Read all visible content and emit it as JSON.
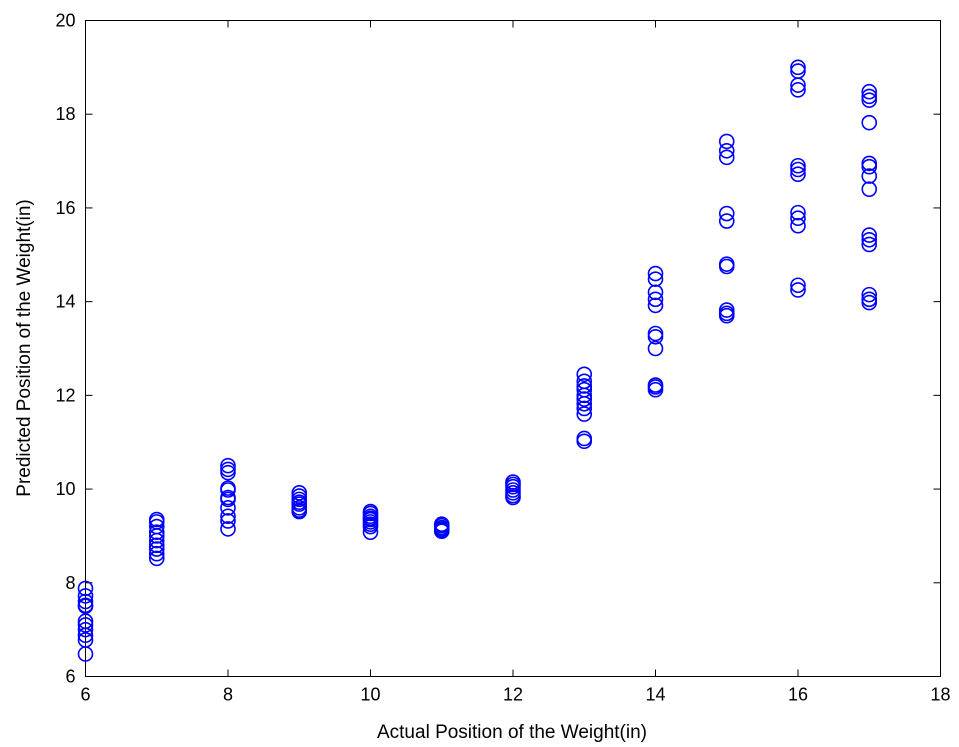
{
  "chart_data": {
    "type": "scatter",
    "title": "",
    "xlabel": "Actual Position of the Weight(in)",
    "ylabel": "Predicted Position of the Weight(in)",
    "xlim": [
      6,
      18
    ],
    "ylim": [
      6,
      20
    ],
    "xticks": [
      6,
      8,
      10,
      12,
      14,
      16,
      18
    ],
    "yticks": [
      6,
      8,
      10,
      12,
      14,
      16,
      18,
      20
    ],
    "marker": "open-circle",
    "color": "#0000ff",
    "grid": false,
    "series": [
      {
        "points": [
          [
            6,
            7.88
          ],
          [
            6,
            7.72
          ],
          [
            6,
            7.6
          ],
          [
            6,
            7.52
          ],
          [
            6,
            7.5
          ],
          [
            6,
            7.18
          ],
          [
            6,
            7.1
          ],
          [
            6,
            7.0
          ],
          [
            6,
            6.88
          ],
          [
            6,
            6.78
          ],
          [
            6,
            6.48
          ],
          [
            7,
            9.35
          ],
          [
            7,
            9.3
          ],
          [
            7,
            9.2
          ],
          [
            7,
            9.08
          ],
          [
            7,
            9.0
          ],
          [
            7,
            8.9
          ],
          [
            7,
            8.8
          ],
          [
            7,
            8.72
          ],
          [
            7,
            8.62
          ],
          [
            7,
            8.52
          ],
          [
            8,
            10.5
          ],
          [
            8,
            10.42
          ],
          [
            8,
            10.35
          ],
          [
            8,
            10.02
          ],
          [
            8,
            9.98
          ],
          [
            8,
            9.82
          ],
          [
            8,
            9.78
          ],
          [
            8,
            9.6
          ],
          [
            8,
            9.42
          ],
          [
            8,
            9.32
          ],
          [
            8,
            9.15
          ],
          [
            9,
            9.92
          ],
          [
            9,
            9.85
          ],
          [
            9,
            9.78
          ],
          [
            9,
            9.72
          ],
          [
            9,
            9.68
          ],
          [
            9,
            9.6
          ],
          [
            9,
            9.55
          ],
          [
            9,
            9.52
          ],
          [
            10,
            9.52
          ],
          [
            10,
            9.48
          ],
          [
            10,
            9.42
          ],
          [
            10,
            9.38
          ],
          [
            10,
            9.35
          ],
          [
            10,
            9.3
          ],
          [
            10,
            9.25
          ],
          [
            10,
            9.2
          ],
          [
            10,
            9.08
          ],
          [
            11,
            9.25
          ],
          [
            11,
            9.22
          ],
          [
            11,
            9.18
          ],
          [
            11,
            9.15
          ],
          [
            11,
            9.12
          ],
          [
            11,
            9.1
          ],
          [
            12,
            10.15
          ],
          [
            12,
            10.1
          ],
          [
            12,
            10.05
          ],
          [
            12,
            9.98
          ],
          [
            12,
            9.92
          ],
          [
            12,
            9.86
          ],
          [
            12,
            9.82
          ],
          [
            13,
            12.45
          ],
          [
            13,
            12.3
          ],
          [
            13,
            12.2
          ],
          [
            13,
            12.12
          ],
          [
            13,
            12.0
          ],
          [
            13,
            11.92
          ],
          [
            13,
            11.82
          ],
          [
            13,
            11.72
          ],
          [
            13,
            11.6
          ],
          [
            13,
            11.08
          ],
          [
            13,
            11.02
          ],
          [
            14,
            14.6
          ],
          [
            14,
            14.48
          ],
          [
            14,
            14.2
          ],
          [
            14,
            14.05
          ],
          [
            14,
            13.92
          ],
          [
            14,
            13.32
          ],
          [
            14,
            13.25
          ],
          [
            14,
            13.0
          ],
          [
            14,
            12.22
          ],
          [
            14,
            12.18
          ],
          [
            14,
            12.12
          ],
          [
            15,
            17.42
          ],
          [
            15,
            17.22
          ],
          [
            15,
            17.08
          ],
          [
            15,
            15.88
          ],
          [
            15,
            15.72
          ],
          [
            15,
            14.8
          ],
          [
            15,
            14.75
          ],
          [
            15,
            13.82
          ],
          [
            15,
            13.75
          ],
          [
            15,
            13.7
          ],
          [
            16,
            19.0
          ],
          [
            16,
            18.92
          ],
          [
            16,
            18.62
          ],
          [
            16,
            18.52
          ],
          [
            16,
            16.9
          ],
          [
            16,
            16.82
          ],
          [
            16,
            16.72
          ],
          [
            16,
            15.9
          ],
          [
            16,
            15.78
          ],
          [
            16,
            15.62
          ],
          [
            16,
            14.35
          ],
          [
            16,
            14.25
          ],
          [
            17,
            18.48
          ],
          [
            17,
            18.38
          ],
          [
            17,
            18.3
          ],
          [
            17,
            17.82
          ],
          [
            17,
            16.95
          ],
          [
            17,
            16.88
          ],
          [
            17,
            16.68
          ],
          [
            17,
            16.4
          ],
          [
            17,
            15.42
          ],
          [
            17,
            15.32
          ],
          [
            17,
            15.22
          ],
          [
            17,
            14.15
          ],
          [
            17,
            14.05
          ],
          [
            17,
            13.98
          ]
        ]
      }
    ]
  }
}
